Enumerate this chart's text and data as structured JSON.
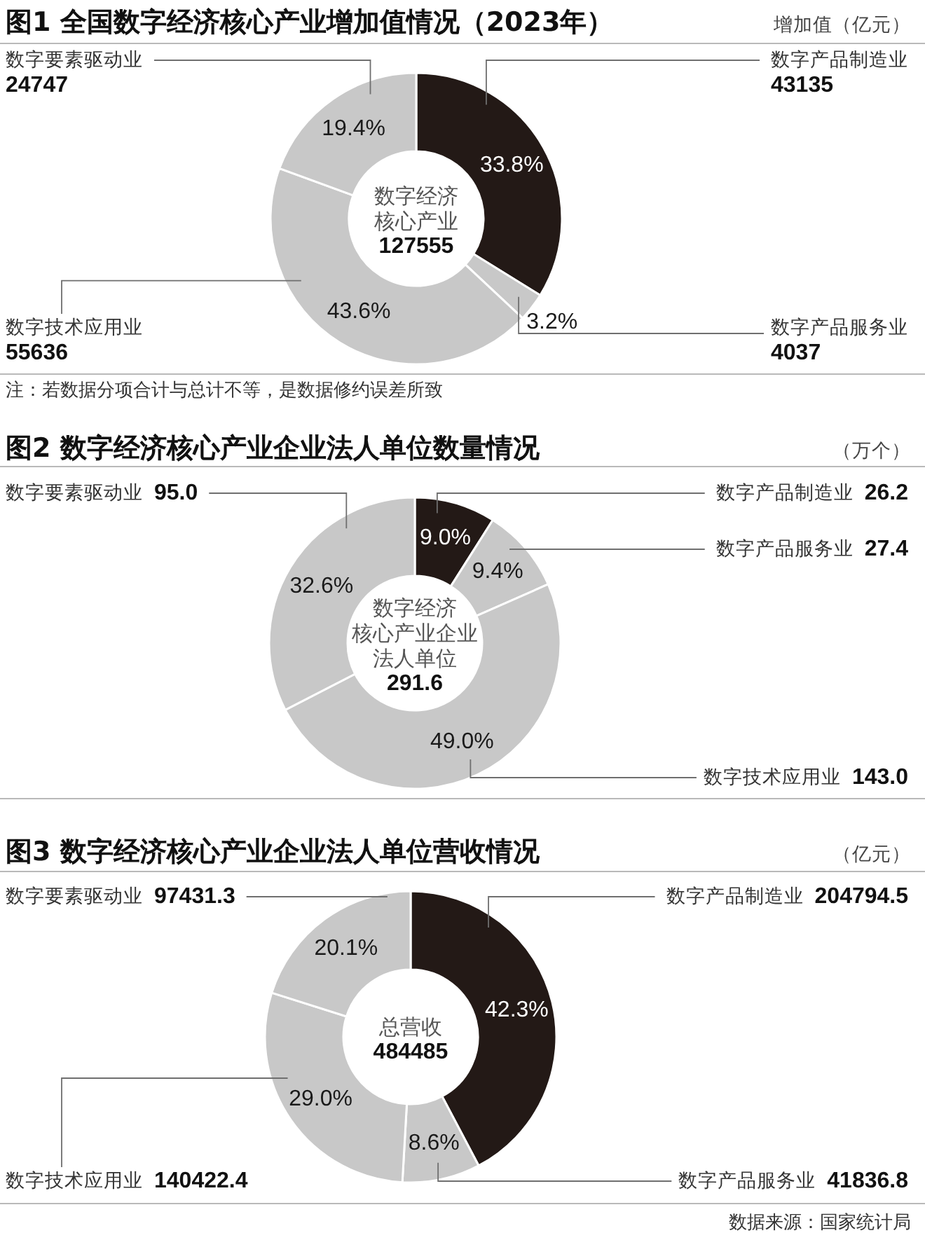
{
  "chart_data": [
    {
      "type": "donut",
      "title": "图1 全国数字经济核心产业增加值情况（2023年）",
      "subtitle": "增加值（亿元）",
      "categories": [
        "数字产品制造业",
        "数字产品服务业",
        "数字技术应用业",
        "数字要素驱动业"
      ],
      "values": [
        43135,
        4037,
        55636,
        24747
      ],
      "colors": [
        "#231916",
        "#c8c8c8",
        "#c8c8c8",
        "#c8c8c8"
      ],
      "value_labels": [
        "43135",
        "4037",
        "55636",
        "24747"
      ],
      "annotations": [
        "数字经济核心产业",
        "127555",
        "注：若数据分项合计与总计不等，是数据修约误差所致",
        {
          "text": "33.8%",
          "x": "数字产品制造业"
        },
        {
          "text": "3.2%",
          "x": "数字产品服务业"
        },
        {
          "text": "43.6%",
          "x": "数字技术应用业"
        },
        {
          "text": "19.4%",
          "x": "数字要素驱动业"
        }
      ]
    },
    {
      "type": "donut",
      "title": "图2 数字经济核心产业企业法人单位数量情况",
      "subtitle": "（万个）",
      "categories": [
        "数字产品制造业",
        "数字产品服务业",
        "数字技术应用业",
        "数字要素驱动业"
      ],
      "values": [
        26.2,
        27.4,
        143.0,
        95.0
      ],
      "colors": [
        "#231916",
        "#c8c8c8",
        "#c8c8c8",
        "#c8c8c8"
      ],
      "value_labels": [
        "26.2",
        "27.4",
        "143.0",
        "95.0"
      ],
      "annotations": [
        "数字经济核心产业企业法人单位",
        "291.6",
        {
          "text": "9.0%",
          "x": "数字产品制造业"
        },
        {
          "text": "9.4%",
          "x": "数字产品服务业"
        },
        {
          "text": "49.0%",
          "x": "数字技术应用业"
        },
        {
          "text": "32.6%",
          "x": "数字要素驱动业"
        }
      ]
    },
    {
      "type": "donut",
      "title": "图3 数字经济核心产业企业法人单位营收情况",
      "subtitle": "（亿元）",
      "categories": [
        "数字产品制造业",
        "数字产品服务业",
        "数字技术应用业",
        "数字要素驱动业"
      ],
      "values": [
        204794.5,
        41836.8,
        140422.4,
        97431.3
      ],
      "colors": [
        "#231916",
        "#c8c8c8",
        "#c8c8c8",
        "#c8c8c8"
      ],
      "value_labels": [
        "204794.5",
        "41836.8",
        "140422.4",
        "97431.3"
      ],
      "annotations": [
        "总营收",
        "484485",
        "数据来源：国家统计局",
        {
          "text": "42.3%",
          "x": "数字产品制造业"
        },
        {
          "text": "8.6%",
          "x": "数字产品服务业"
        },
        {
          "text": "29.0%",
          "x": "数字技术应用业"
        },
        {
          "text": "20.1%",
          "x": "数字要素驱动业"
        }
      ]
    }
  ]
}
